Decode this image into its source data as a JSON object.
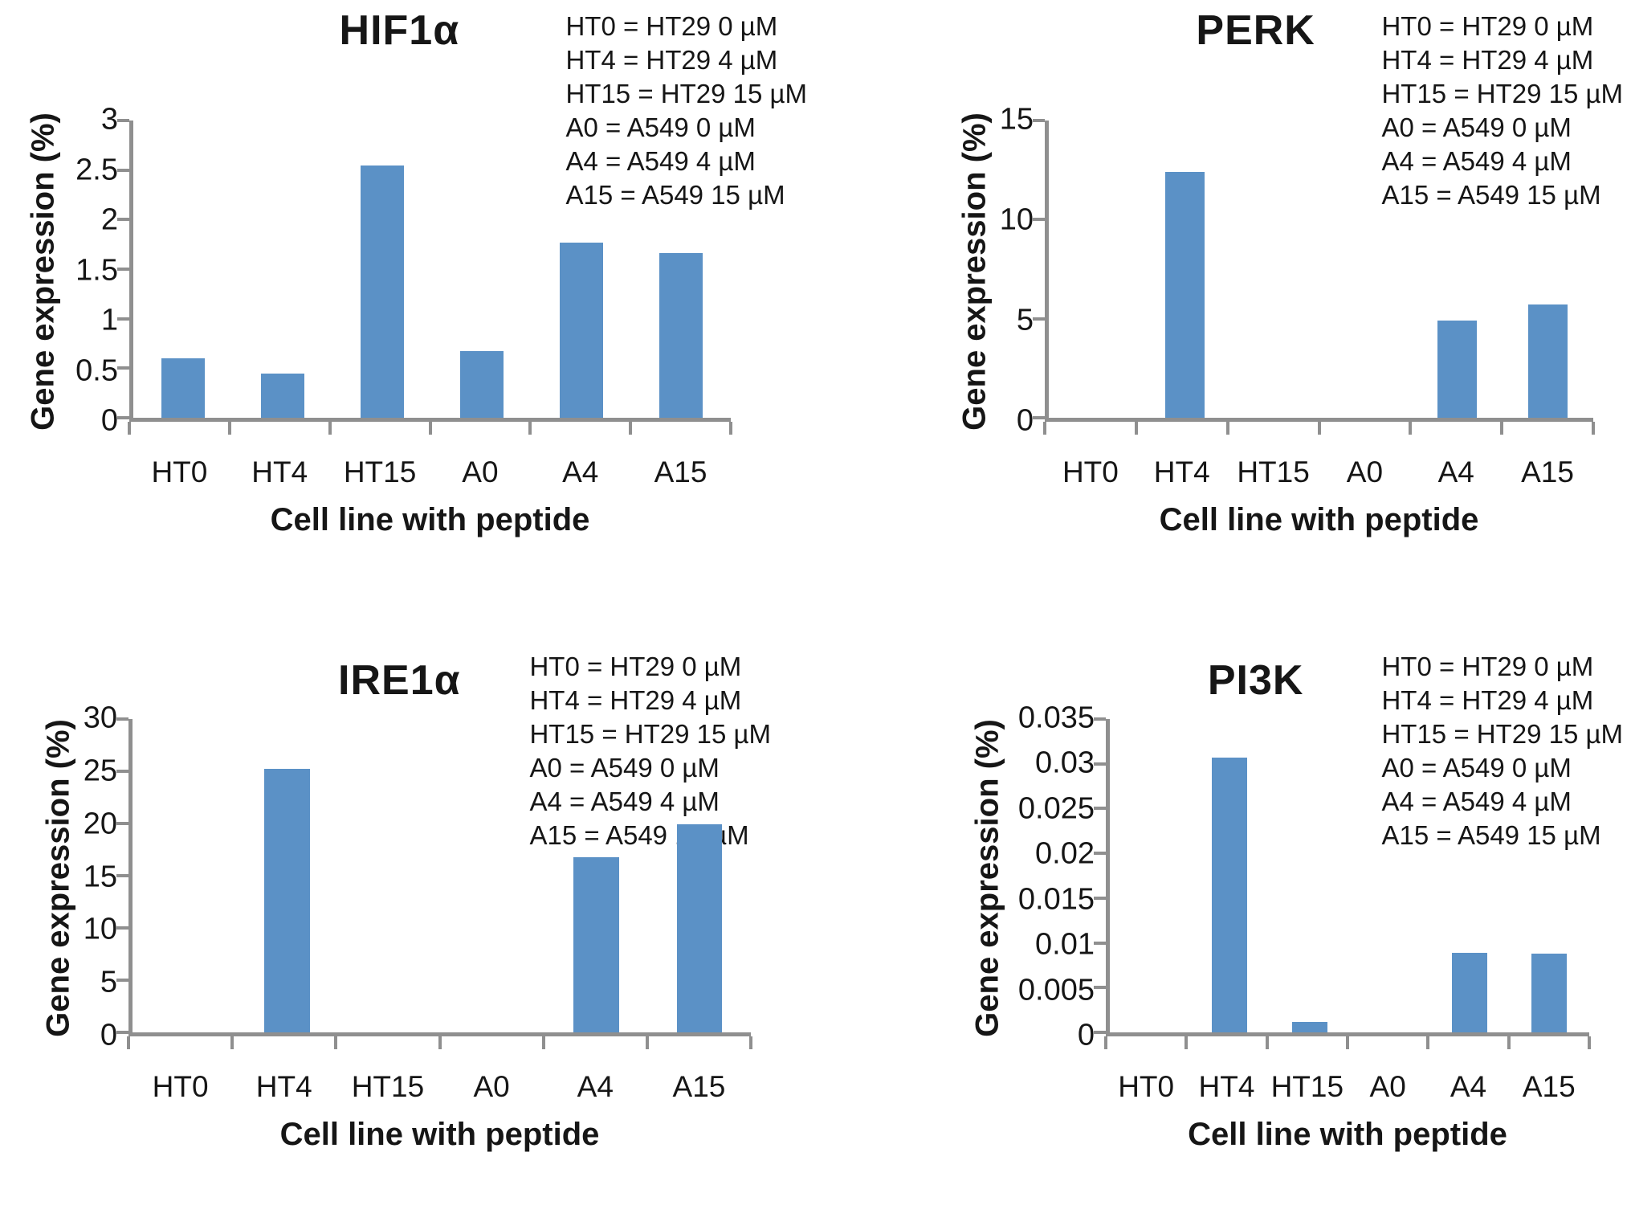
{
  "colors": {
    "bar": "#5b91c6",
    "axis": "#8f8f8f",
    "text": "#161616",
    "background": "#ffffff"
  },
  "legend_lines": [
    "HT0 = HT29 0 µM",
    "HT4 = HT29 4 µM",
    "HT15 = HT29 15 µM",
    "A0 = A549 0 µM",
    "A4 = A549 4 µM",
    "A15 = A549 15 µM"
  ],
  "chart_data": [
    {
      "type": "bar",
      "title": "HIF1α",
      "ylabel": "Gene expression (%)",
      "xlabel": "Cell line with peptide",
      "categories": [
        "HT0",
        "HT4",
        "HT15",
        "A0",
        "A4",
        "A15"
      ],
      "values": [
        0.6,
        0.45,
        2.55,
        0.67,
        1.77,
        1.66
      ],
      "ylim": [
        0,
        3
      ],
      "yticks": [
        "3",
        "2.5",
        "2",
        "1.5",
        "1",
        "0.5",
        "0"
      ],
      "grid": false,
      "legend_position": "top-right"
    },
    {
      "type": "bar",
      "title": "PERK",
      "ylabel": "Gene expression (%)",
      "xlabel": "Cell line with peptide",
      "categories": [
        "HT0",
        "HT4",
        "HT15",
        "A0",
        "A4",
        "A15"
      ],
      "values": [
        0,
        12.4,
        0,
        0,
        4.9,
        5.7
      ],
      "ylim": [
        0,
        15
      ],
      "yticks": [
        "15",
        "10",
        "5",
        "0"
      ],
      "grid": false,
      "legend_position": "top-right"
    },
    {
      "type": "bar",
      "title": "IRE1α",
      "ylabel": "Gene expression (%)",
      "xlabel": "Cell line with peptide",
      "categories": [
        "HT0",
        "HT4",
        "HT15",
        "A0",
        "A4",
        "A15"
      ],
      "values": [
        0,
        25.2,
        0,
        0,
        16.8,
        19.9
      ],
      "ylim": [
        0,
        30
      ],
      "yticks": [
        "30",
        "25",
        "20",
        "15",
        "10",
        "5",
        "0"
      ],
      "grid": false,
      "legend_position": "top-right"
    },
    {
      "type": "bar",
      "title": "PI3K",
      "ylabel": "Gene expression (%)",
      "xlabel": "Cell line with peptide",
      "categories": [
        "HT0",
        "HT4",
        "HT15",
        "A0",
        "A4",
        "A15"
      ],
      "values": [
        0,
        0.0307,
        0.0012,
        0,
        0.0089,
        0.0088
      ],
      "ylim": [
        0,
        0.035
      ],
      "yticks": [
        "0.035",
        "0.03",
        "0.025",
        "0.02",
        "0.015",
        "0.01",
        "0.005",
        "0"
      ],
      "grid": false,
      "legend_position": "top-right"
    }
  ]
}
